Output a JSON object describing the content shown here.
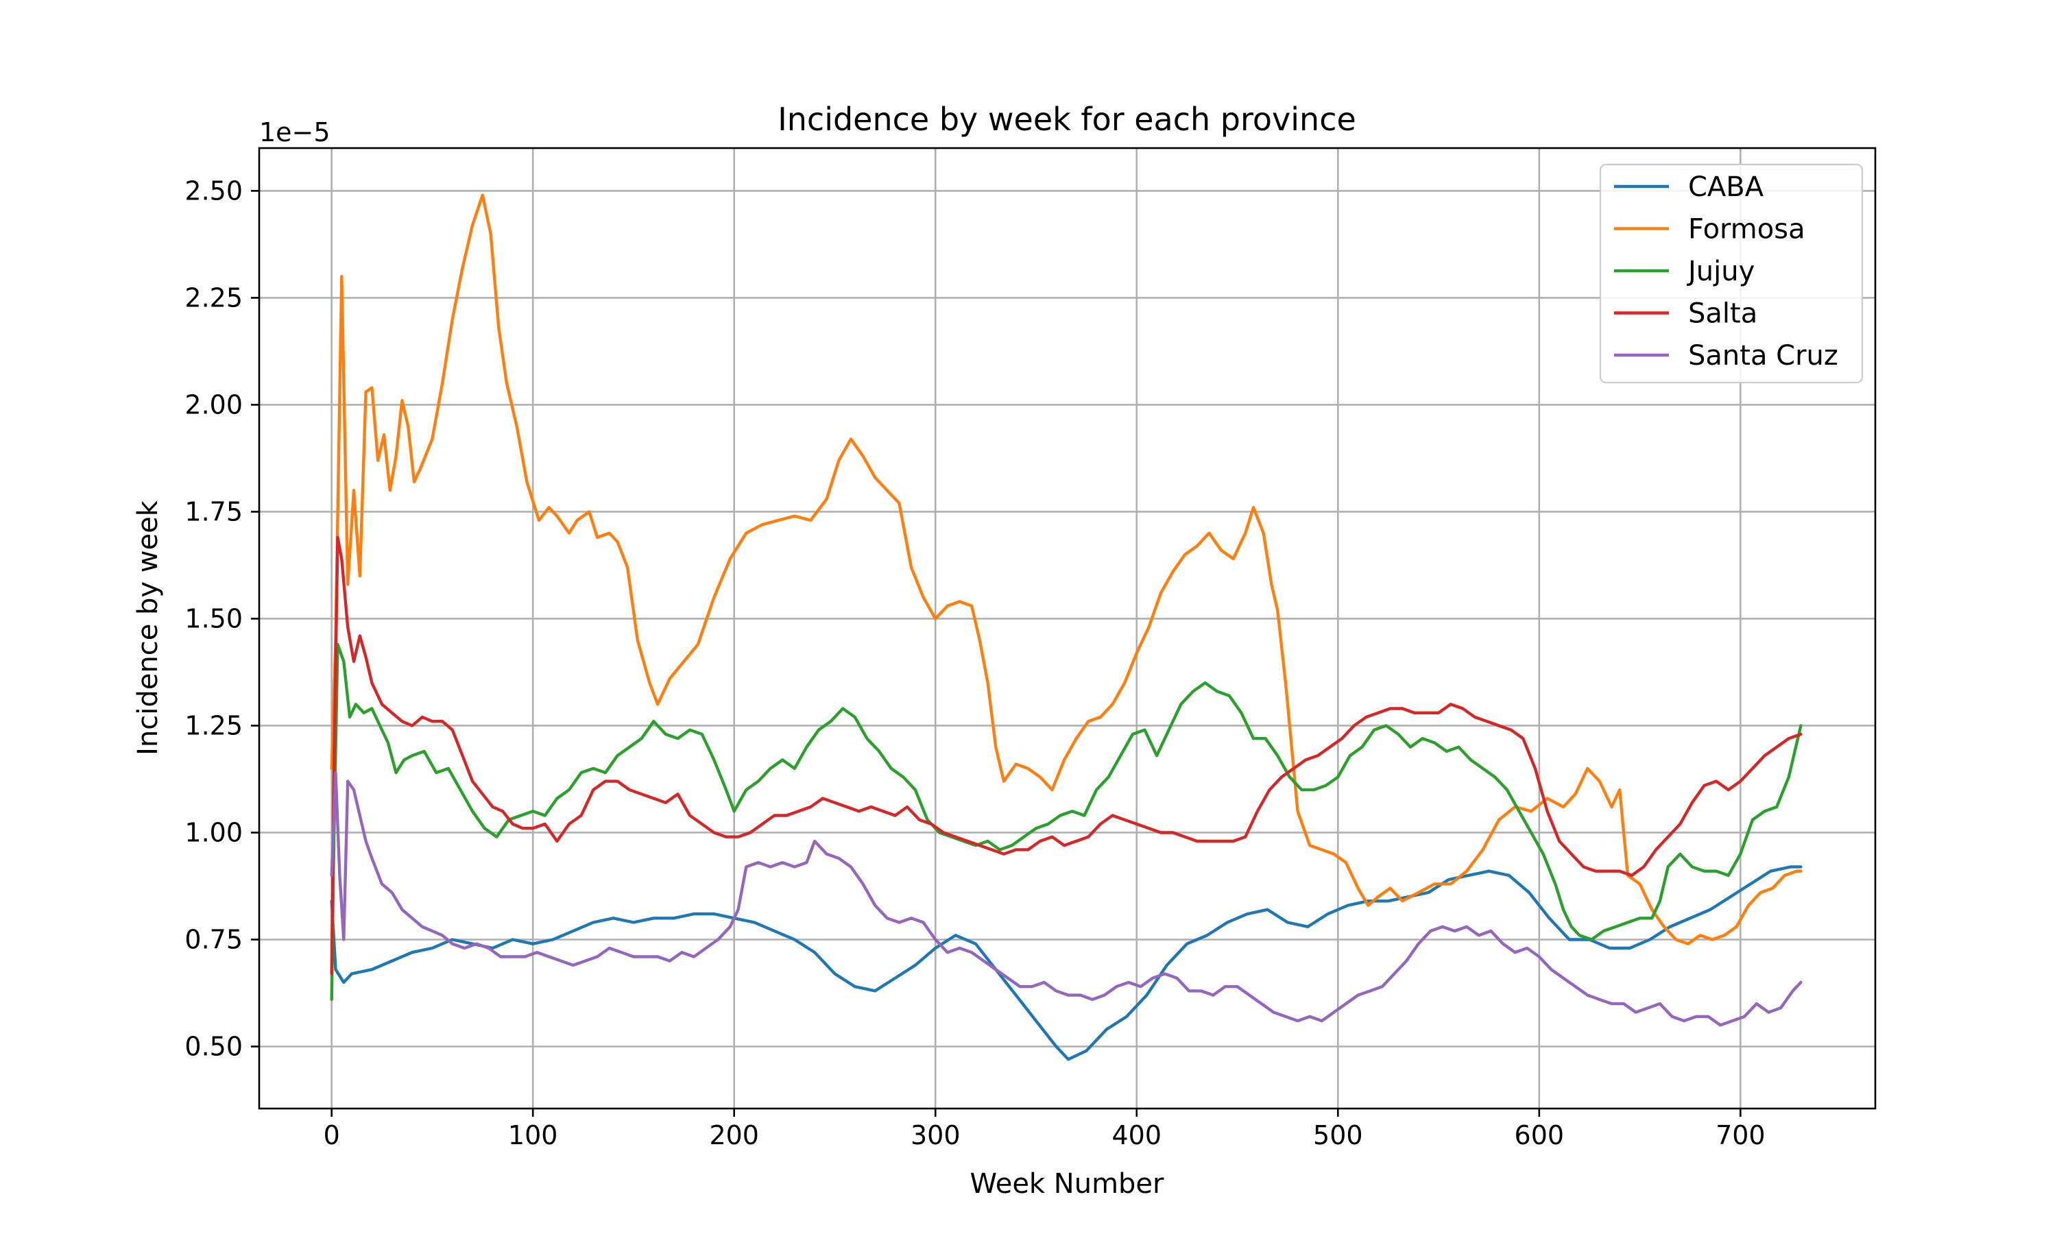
{
  "chart_data": {
    "type": "line",
    "title": "Incidence by week for each province",
    "xlabel": "Week Number",
    "ylabel": "Incidence by week",
    "offset_text": "1e−5",
    "xlim": [
      -36,
      767
    ],
    "ylim": [
      0.355,
      2.6
    ],
    "xticks": [
      0,
      100,
      200,
      300,
      400,
      500,
      600,
      700
    ],
    "xtick_labels": [
      "0",
      "100",
      "200",
      "300",
      "400",
      "500",
      "600",
      "700"
    ],
    "yticks": [
      0.5,
      0.75,
      1.0,
      1.25,
      1.5,
      1.75,
      2.0,
      2.25,
      2.5
    ],
    "ytick_labels": [
      "0.50",
      "0.75",
      "1.00",
      "1.25",
      "1.50",
      "1.75",
      "2.00",
      "2.25",
      "2.50"
    ],
    "grid": true,
    "legend_position": "top-right",
    "series": [
      {
        "name": "CABA",
        "color": "#1f77b4",
        "x": [
          0,
          2,
          6,
          10,
          20,
          30,
          40,
          50,
          60,
          70,
          80,
          90,
          100,
          110,
          120,
          130,
          140,
          150,
          160,
          170,
          180,
          190,
          200,
          210,
          220,
          230,
          240,
          250,
          260,
          270,
          280,
          290,
          300,
          310,
          320,
          330,
          340,
          350,
          360,
          366,
          375,
          385,
          395,
          405,
          415,
          425,
          435,
          445,
          455,
          465,
          475,
          485,
          495,
          505,
          515,
          525,
          535,
          545,
          555,
          565,
          575,
          585,
          595,
          605,
          615,
          625,
          635,
          645,
          655,
          665,
          675,
          685,
          695,
          705,
          715,
          725,
          730
        ],
        "values": [
          0.84,
          0.68,
          0.65,
          0.67,
          0.68,
          0.7,
          0.72,
          0.73,
          0.75,
          0.74,
          0.73,
          0.75,
          0.74,
          0.75,
          0.77,
          0.79,
          0.8,
          0.79,
          0.8,
          0.8,
          0.81,
          0.81,
          0.8,
          0.79,
          0.77,
          0.75,
          0.72,
          0.67,
          0.64,
          0.63,
          0.66,
          0.69,
          0.73,
          0.76,
          0.74,
          0.68,
          0.62,
          0.56,
          0.5,
          0.47,
          0.49,
          0.54,
          0.57,
          0.62,
          0.69,
          0.74,
          0.76,
          0.79,
          0.81,
          0.82,
          0.79,
          0.78,
          0.81,
          0.83,
          0.84,
          0.84,
          0.85,
          0.86,
          0.89,
          0.9,
          0.91,
          0.9,
          0.86,
          0.8,
          0.75,
          0.75,
          0.73,
          0.73,
          0.75,
          0.78,
          0.8,
          0.82,
          0.85,
          0.88,
          0.91,
          0.92,
          0.92
        ]
      },
      {
        "name": "Formosa",
        "color": "#ff7f0e",
        "x": [
          0,
          2,
          5,
          8,
          11,
          14,
          17,
          20,
          23,
          26,
          29,
          32,
          35,
          38,
          41,
          44,
          50,
          55,
          60,
          65,
          70,
          75,
          79,
          83,
          87,
          92,
          97,
          103,
          108,
          112,
          118,
          122,
          128,
          132,
          138,
          142,
          147,
          152,
          158,
          162,
          168,
          175,
          182,
          190,
          198,
          206,
          214,
          222,
          230,
          238,
          246,
          252,
          258,
          264,
          270,
          276,
          282,
          288,
          294,
          300,
          306,
          312,
          318,
          322,
          326,
          330,
          334,
          340,
          346,
          352,
          358,
          364,
          370,
          376,
          382,
          388,
          394,
          400,
          406,
          412,
          418,
          424,
          430,
          436,
          442,
          448,
          454,
          458,
          463,
          467,
          470,
          474,
          480,
          486,
          492,
          498,
          504,
          510,
          515,
          520,
          526,
          532,
          540,
          548,
          556,
          564,
          572,
          580,
          588,
          596,
          604,
          612,
          618,
          624,
          630,
          636,
          640,
          644,
          650,
          656,
          662,
          668,
          674,
          680,
          686,
          692,
          698,
          704,
          710,
          716,
          722,
          728,
          730
        ],
        "values": [
          1.15,
          1.45,
          2.3,
          1.58,
          1.8,
          1.6,
          2.03,
          2.04,
          1.87,
          1.93,
          1.8,
          1.88,
          2.01,
          1.95,
          1.82,
          1.85,
          1.92,
          2.05,
          2.2,
          2.32,
          2.42,
          2.49,
          2.4,
          2.18,
          2.05,
          1.95,
          1.82,
          1.73,
          1.76,
          1.74,
          1.7,
          1.73,
          1.75,
          1.69,
          1.7,
          1.68,
          1.62,
          1.45,
          1.35,
          1.3,
          1.36,
          1.4,
          1.44,
          1.55,
          1.64,
          1.7,
          1.72,
          1.73,
          1.74,
          1.73,
          1.78,
          1.87,
          1.92,
          1.88,
          1.83,
          1.8,
          1.77,
          1.62,
          1.55,
          1.5,
          1.53,
          1.54,
          1.53,
          1.45,
          1.35,
          1.2,
          1.12,
          1.16,
          1.15,
          1.13,
          1.1,
          1.17,
          1.22,
          1.26,
          1.27,
          1.3,
          1.35,
          1.42,
          1.48,
          1.56,
          1.61,
          1.65,
          1.67,
          1.7,
          1.66,
          1.64,
          1.7,
          1.76,
          1.7,
          1.58,
          1.52,
          1.35,
          1.05,
          0.97,
          0.96,
          0.95,
          0.93,
          0.87,
          0.83,
          0.85,
          0.87,
          0.84,
          0.86,
          0.88,
          0.88,
          0.91,
          0.96,
          1.03,
          1.06,
          1.05,
          1.08,
          1.06,
          1.09,
          1.15,
          1.12,
          1.06,
          1.1,
          0.9,
          0.88,
          0.82,
          0.78,
          0.75,
          0.74,
          0.76,
          0.75,
          0.76,
          0.78,
          0.83,
          0.86,
          0.87,
          0.9,
          0.91,
          0.91
        ]
      },
      {
        "name": "Jujuy",
        "color": "#2ca02c",
        "x": [
          0,
          1,
          3,
          6,
          9,
          12,
          16,
          20,
          24,
          28,
          32,
          36,
          40,
          46,
          52,
          58,
          64,
          70,
          76,
          82,
          88,
          94,
          100,
          106,
          112,
          118,
          124,
          130,
          136,
          142,
          148,
          154,
          160,
          166,
          172,
          178,
          184,
          190,
          196,
          200,
          206,
          212,
          218,
          224,
          230,
          236,
          242,
          248,
          254,
          260,
          266,
          272,
          278,
          284,
          290,
          296,
          302,
          308,
          314,
          320,
          326,
          332,
          338,
          344,
          350,
          356,
          362,
          368,
          374,
          380,
          386,
          392,
          398,
          404,
          410,
          416,
          422,
          428,
          434,
          440,
          446,
          452,
          458,
          464,
          470,
          476,
          482,
          488,
          494,
          500,
          506,
          512,
          518,
          524,
          530,
          536,
          542,
          548,
          554,
          560,
          566,
          572,
          578,
          584,
          590,
          596,
          602,
          608,
          612,
          616,
          620,
          626,
          632,
          638,
          644,
          650,
          656,
          660,
          664,
          670,
          676,
          682,
          688,
          694,
          700,
          706,
          712,
          718,
          724,
          730
        ],
        "values": [
          0.61,
          0.95,
          1.44,
          1.4,
          1.27,
          1.3,
          1.28,
          1.29,
          1.25,
          1.21,
          1.14,
          1.17,
          1.18,
          1.19,
          1.14,
          1.15,
          1.1,
          1.05,
          1.01,
          0.99,
          1.03,
          1.04,
          1.05,
          1.04,
          1.08,
          1.1,
          1.14,
          1.15,
          1.14,
          1.18,
          1.2,
          1.22,
          1.26,
          1.23,
          1.22,
          1.24,
          1.23,
          1.17,
          1.1,
          1.05,
          1.1,
          1.12,
          1.15,
          1.17,
          1.15,
          1.2,
          1.24,
          1.26,
          1.29,
          1.27,
          1.22,
          1.19,
          1.15,
          1.13,
          1.1,
          1.03,
          1.0,
          0.99,
          0.98,
          0.97,
          0.98,
          0.96,
          0.97,
          0.99,
          1.01,
          1.02,
          1.04,
          1.05,
          1.04,
          1.1,
          1.13,
          1.18,
          1.23,
          1.24,
          1.18,
          1.24,
          1.3,
          1.33,
          1.35,
          1.33,
          1.32,
          1.28,
          1.22,
          1.22,
          1.18,
          1.13,
          1.1,
          1.1,
          1.11,
          1.13,
          1.18,
          1.2,
          1.24,
          1.25,
          1.23,
          1.2,
          1.22,
          1.21,
          1.19,
          1.2,
          1.17,
          1.15,
          1.13,
          1.1,
          1.05,
          1.0,
          0.95,
          0.88,
          0.82,
          0.78,
          0.76,
          0.75,
          0.77,
          0.78,
          0.79,
          0.8,
          0.8,
          0.84,
          0.92,
          0.95,
          0.92,
          0.91,
          0.91,
          0.9,
          0.95,
          1.03,
          1.05,
          1.06,
          1.13,
          1.25
        ]
      },
      {
        "name": "Salta",
        "color": "#d62728",
        "x": [
          0,
          1,
          3,
          5,
          8,
          11,
          14,
          17,
          20,
          25,
          30,
          35,
          40,
          45,
          50,
          55,
          60,
          65,
          70,
          75,
          80,
          85,
          90,
          95,
          100,
          106,
          112,
          118,
          124,
          130,
          136,
          142,
          148,
          154,
          160,
          166,
          172,
          178,
          184,
          190,
          196,
          202,
          208,
          214,
          220,
          226,
          232,
          238,
          244,
          250,
          256,
          262,
          268,
          274,
          280,
          286,
          292,
          298,
          304,
          310,
          316,
          322,
          328,
          334,
          340,
          346,
          352,
          358,
          364,
          370,
          376,
          382,
          388,
          394,
          400,
          406,
          412,
          418,
          424,
          430,
          436,
          442,
          448,
          454,
          460,
          466,
          472,
          478,
          484,
          490,
          496,
          502,
          508,
          514,
          520,
          526,
          532,
          538,
          544,
          550,
          556,
          562,
          568,
          574,
          580,
          586,
          592,
          598,
          604,
          610,
          616,
          622,
          628,
          634,
          640,
          646,
          652,
          658,
          664,
          670,
          676,
          682,
          688,
          694,
          700,
          706,
          712,
          718,
          724,
          730
        ],
        "values": [
          0.67,
          1.1,
          1.69,
          1.64,
          1.48,
          1.4,
          1.46,
          1.41,
          1.35,
          1.3,
          1.28,
          1.26,
          1.25,
          1.27,
          1.26,
          1.26,
          1.24,
          1.18,
          1.12,
          1.09,
          1.06,
          1.05,
          1.02,
          1.01,
          1.01,
          1.02,
          0.98,
          1.02,
          1.04,
          1.1,
          1.12,
          1.12,
          1.1,
          1.09,
          1.08,
          1.07,
          1.09,
          1.04,
          1.02,
          1.0,
          0.99,
          0.99,
          1.0,
          1.02,
          1.04,
          1.04,
          1.05,
          1.06,
          1.08,
          1.07,
          1.06,
          1.05,
          1.06,
          1.05,
          1.04,
          1.06,
          1.03,
          1.02,
          1.0,
          0.99,
          0.98,
          0.97,
          0.96,
          0.95,
          0.96,
          0.96,
          0.98,
          0.99,
          0.97,
          0.98,
          0.99,
          1.02,
          1.04,
          1.03,
          1.02,
          1.01,
          1.0,
          1.0,
          0.99,
          0.98,
          0.98,
          0.98,
          0.98,
          0.99,
          1.05,
          1.1,
          1.13,
          1.15,
          1.17,
          1.18,
          1.2,
          1.22,
          1.25,
          1.27,
          1.28,
          1.29,
          1.29,
          1.28,
          1.28,
          1.28,
          1.3,
          1.29,
          1.27,
          1.26,
          1.25,
          1.24,
          1.22,
          1.15,
          1.05,
          0.98,
          0.95,
          0.92,
          0.91,
          0.91,
          0.91,
          0.9,
          0.92,
          0.96,
          0.99,
          1.02,
          1.07,
          1.11,
          1.12,
          1.1,
          1.12,
          1.15,
          1.18,
          1.2,
          1.22,
          1.23
        ]
      },
      {
        "name": "Santa Cruz",
        "color": "#9467bd",
        "x": [
          0,
          2,
          4,
          6,
          8,
          11,
          14,
          17,
          20,
          25,
          30,
          35,
          40,
          45,
          50,
          55,
          60,
          66,
          72,
          78,
          84,
          90,
          96,
          102,
          108,
          114,
          120,
          126,
          132,
          138,
          144,
          150,
          156,
          162,
          168,
          174,
          180,
          186,
          192,
          198,
          202,
          206,
          212,
          218,
          224,
          230,
          236,
          240,
          246,
          252,
          258,
          264,
          270,
          276,
          282,
          288,
          294,
          300,
          306,
          312,
          318,
          324,
          330,
          336,
          342,
          348,
          354,
          360,
          366,
          372,
          378,
          384,
          390,
          396,
          402,
          408,
          414,
          420,
          426,
          432,
          438,
          444,
          450,
          456,
          462,
          468,
          474,
          480,
          486,
          492,
          498,
          504,
          510,
          516,
          522,
          528,
          534,
          540,
          546,
          552,
          558,
          564,
          570,
          576,
          582,
          588,
          594,
          600,
          606,
          612,
          618,
          624,
          630,
          636,
          642,
          648,
          654,
          660,
          666,
          672,
          678,
          684,
          690,
          696,
          702,
          708,
          714,
          720,
          726,
          730
        ],
        "values": [
          0.9,
          1.14,
          0.9,
          0.75,
          1.12,
          1.1,
          1.04,
          0.98,
          0.94,
          0.88,
          0.86,
          0.82,
          0.8,
          0.78,
          0.77,
          0.76,
          0.74,
          0.73,
          0.74,
          0.73,
          0.71,
          0.71,
          0.71,
          0.72,
          0.71,
          0.7,
          0.69,
          0.7,
          0.71,
          0.73,
          0.72,
          0.71,
          0.71,
          0.71,
          0.7,
          0.72,
          0.71,
          0.73,
          0.75,
          0.78,
          0.82,
          0.92,
          0.93,
          0.92,
          0.93,
          0.92,
          0.93,
          0.98,
          0.95,
          0.94,
          0.92,
          0.88,
          0.83,
          0.8,
          0.79,
          0.8,
          0.79,
          0.75,
          0.72,
          0.73,
          0.72,
          0.7,
          0.68,
          0.66,
          0.64,
          0.64,
          0.65,
          0.63,
          0.62,
          0.62,
          0.61,
          0.62,
          0.64,
          0.65,
          0.64,
          0.66,
          0.67,
          0.66,
          0.63,
          0.63,
          0.62,
          0.64,
          0.64,
          0.62,
          0.6,
          0.58,
          0.57,
          0.56,
          0.57,
          0.56,
          0.58,
          0.6,
          0.62,
          0.63,
          0.64,
          0.67,
          0.7,
          0.74,
          0.77,
          0.78,
          0.77,
          0.78,
          0.76,
          0.77,
          0.74,
          0.72,
          0.73,
          0.71,
          0.68,
          0.66,
          0.64,
          0.62,
          0.61,
          0.6,
          0.6,
          0.58,
          0.59,
          0.6,
          0.57,
          0.56,
          0.57,
          0.57,
          0.55,
          0.56,
          0.57,
          0.6,
          0.58,
          0.59,
          0.63,
          0.65
        ]
      }
    ]
  }
}
